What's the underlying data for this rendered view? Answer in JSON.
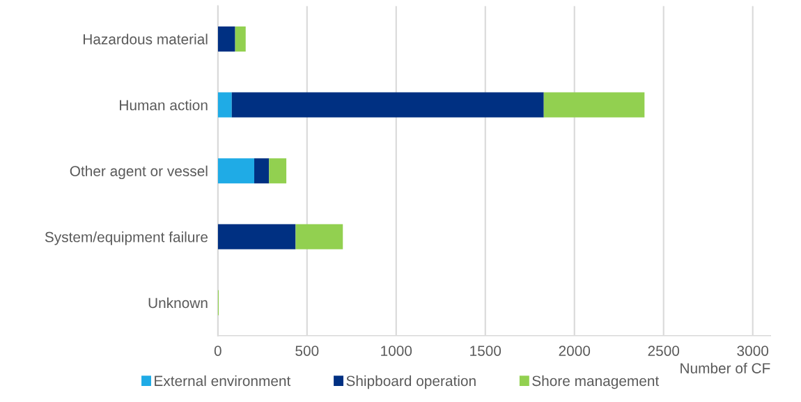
{
  "chart_data": {
    "type": "bar",
    "orientation": "horizontal",
    "stacked": true,
    "xlabel": "Number of CF",
    "categories": [
      "Hazardous material",
      "Human action",
      "Other agent or vessel",
      "System/equipment failure",
      "Unknown"
    ],
    "series": [
      {
        "name": "External environment",
        "color": "#1fabe6",
        "values": [
          0,
          78,
          204,
          0,
          0
        ]
      },
      {
        "name": "Shipboard operation",
        "color": "#003082",
        "values": [
          97,
          1750,
          83,
          436,
          0
        ]
      },
      {
        "name": "Shore management",
        "color": "#92d050",
        "values": [
          59,
          565,
          97,
          265,
          5
        ]
      }
    ],
    "xlim": [
      0,
      3100
    ],
    "xticks": [
      0,
      500,
      1000,
      1500,
      2000,
      2500,
      3000
    ],
    "grid": "x",
    "legend": "bottom"
  }
}
